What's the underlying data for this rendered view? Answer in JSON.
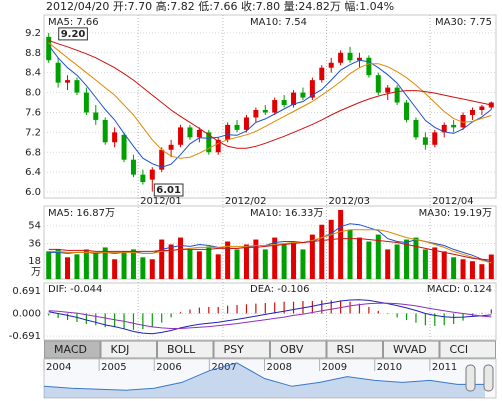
{
  "header": "2012/04/20 开:7.70 高:7.82 低:7.66 收:7.80 量:24.82万 幅:1.04%",
  "tabs": [
    "MACD",
    "KDJ",
    "BOLL",
    "PSY",
    "OBV",
    "RSI",
    "WVAD",
    "CCI"
  ],
  "chart_data": [
    {
      "type": "candlestick",
      "categories": [
        null,
        null,
        null,
        null,
        null,
        null,
        null,
        null,
        null,
        null,
        "2012/01",
        null,
        null,
        null,
        null,
        null,
        null,
        null,
        null,
        "2012/02",
        null,
        null,
        null,
        null,
        null,
        null,
        null,
        null,
        null,
        null,
        "2012/03",
        null,
        null,
        null,
        null,
        null,
        null,
        null,
        null,
        null,
        null,
        "2012/04",
        null,
        null,
        null,
        null,
        null,
        null
      ],
      "open": [
        9.12,
        8.6,
        8.2,
        8.25,
        8.0,
        7.6,
        7.45,
        7.0,
        7.15,
        6.65,
        6.35,
        6.25,
        6.45,
        6.85,
        6.95,
        7.3,
        7.1,
        7.2,
        6.8,
        7.05,
        7.35,
        7.25,
        7.5,
        7.65,
        7.6,
        7.85,
        7.75,
        8.0,
        7.9,
        8.25,
        8.5,
        8.6,
        8.8,
        8.65,
        8.7,
        8.35,
        8.0,
        8.1,
        7.8,
        7.45,
        7.1,
        6.95,
        7.2,
        7.35,
        7.3,
        7.55,
        7.65,
        7.7
      ],
      "high": [
        9.2,
        8.7,
        8.35,
        8.3,
        8.1,
        7.75,
        7.5,
        7.3,
        7.2,
        6.75,
        6.45,
        6.5,
        6.9,
        7.05,
        7.35,
        7.35,
        7.3,
        7.25,
        7.1,
        7.4,
        7.45,
        7.55,
        7.7,
        7.75,
        7.9,
        7.95,
        8.05,
        8.1,
        8.3,
        8.55,
        8.7,
        8.85,
        8.92,
        8.8,
        8.75,
        8.4,
        8.15,
        8.15,
        7.85,
        7.5,
        7.2,
        7.25,
        7.4,
        7.45,
        7.6,
        7.7,
        7.75,
        7.82
      ],
      "low": [
        8.6,
        8.1,
        8.05,
        7.95,
        7.55,
        7.35,
        6.95,
        6.9,
        6.6,
        6.3,
        6.15,
        6.01,
        6.4,
        6.7,
        6.9,
        7.05,
        7.0,
        6.75,
        6.75,
        7.0,
        7.2,
        7.2,
        7.4,
        7.55,
        7.55,
        7.7,
        7.7,
        7.85,
        7.85,
        8.2,
        8.4,
        8.55,
        8.6,
        8.5,
        8.3,
        7.95,
        7.85,
        7.75,
        7.4,
        7.05,
        6.85,
        6.9,
        7.1,
        7.2,
        7.25,
        7.45,
        7.55,
        7.66
      ],
      "close": [
        8.65,
        8.2,
        8.25,
        8.0,
        7.6,
        7.45,
        7.0,
        7.2,
        6.65,
        6.35,
        6.2,
        6.45,
        6.85,
        6.95,
        7.3,
        7.1,
        7.25,
        6.8,
        7.05,
        7.35,
        7.25,
        7.5,
        7.65,
        7.6,
        7.85,
        7.75,
        8.0,
        7.9,
        8.25,
        8.5,
        8.6,
        8.8,
        8.65,
        8.7,
        8.35,
        8.0,
        8.1,
        7.8,
        7.45,
        7.1,
        6.95,
        7.2,
        7.35,
        7.3,
        7.55,
        7.65,
        7.72,
        7.8
      ],
      "series": [
        {
          "name": "MA5: 7.66",
          "color": "#2050d0",
          "values": [
            8.95,
            8.7,
            8.5,
            8.35,
            8.14,
            7.9,
            7.66,
            7.45,
            7.18,
            6.92,
            6.68,
            6.57,
            6.5,
            6.56,
            6.75,
            6.97,
            7.09,
            7.08,
            7.1,
            7.15,
            7.14,
            7.23,
            7.4,
            7.47,
            7.57,
            7.67,
            7.77,
            7.82,
            7.95,
            8.06,
            8.25,
            8.45,
            8.56,
            8.65,
            8.62,
            8.5,
            8.36,
            8.19,
            7.94,
            7.69,
            7.44,
            7.3,
            7.21,
            7.18,
            7.27,
            7.41,
            7.51,
            7.66
          ]
        },
        {
          "name": "MA10: 7.54",
          "color": "#e08a00",
          "values": [
            9.0,
            8.85,
            8.7,
            8.55,
            8.4,
            8.25,
            8.1,
            7.95,
            7.75,
            7.55,
            7.3,
            7.05,
            6.85,
            6.72,
            6.68,
            6.7,
            6.78,
            6.88,
            6.98,
            7.05,
            7.1,
            7.15,
            7.22,
            7.32,
            7.42,
            7.52,
            7.62,
            7.72,
            7.82,
            7.95,
            8.08,
            8.22,
            8.38,
            8.5,
            8.58,
            8.58,
            8.52,
            8.42,
            8.3,
            8.15,
            7.98,
            7.8,
            7.62,
            7.48,
            7.4,
            7.42,
            7.48,
            7.54
          ]
        },
        {
          "name": "MA30: 7.75",
          "color": "#d01010",
          "values": [
            9.05,
            8.98,
            8.92,
            8.85,
            8.78,
            8.7,
            8.6,
            8.5,
            8.38,
            8.25,
            8.1,
            7.95,
            7.8,
            7.65,
            7.52,
            7.4,
            7.28,
            7.15,
            7.02,
            6.92,
            6.88,
            6.88,
            6.92,
            6.98,
            7.05,
            7.12,
            7.2,
            7.28,
            7.36,
            7.45,
            7.55,
            7.64,
            7.72,
            7.8,
            7.87,
            7.93,
            7.98,
            8.02,
            8.04,
            8.04,
            8.02,
            7.99,
            7.95,
            7.91,
            7.87,
            7.83,
            7.79,
            7.75
          ]
        }
      ],
      "annotations": [
        "9.20",
        "6.01"
      ],
      "up_color": "#e00000",
      "down_color": "#00a000",
      "ylim": [
        5.88,
        9.56
      ],
      "yticks": [
        {
          "value": 6,
          "label": "6.0"
        },
        6.4,
        6.8,
        7.2,
        7.6,
        {
          "value": 8,
          "label": "8.0"
        },
        8.4,
        8.8,
        9.2
      ],
      "grid": true
    },
    {
      "type": "bar",
      "values": [
        28,
        30,
        22,
        25,
        30,
        26,
        32,
        20,
        28,
        30,
        22,
        20,
        40,
        35,
        42,
        30,
        28,
        33,
        25,
        38,
        30,
        35,
        40,
        30,
        42,
        35,
        38,
        30,
        45,
        55,
        60,
        70,
        50,
        42,
        38,
        45,
        30,
        35,
        40,
        42,
        30,
        32,
        28,
        22,
        20,
        18,
        15,
        24.82
      ],
      "series": [
        {
          "name": "MA5: 16.87万",
          "color": "#2050d0",
          "values": [
            27,
            27,
            26,
            27,
            27,
            26,
            27,
            26,
            27,
            28,
            26,
            26,
            30,
            32,
            34,
            33,
            35,
            34,
            32,
            31,
            31,
            32,
            34,
            34,
            37,
            38,
            38,
            37,
            38,
            42,
            46,
            53,
            56,
            55,
            52,
            49,
            41,
            38,
            37,
            40,
            38,
            36,
            34,
            30,
            27,
            24,
            20,
            16.87
          ]
        },
        {
          "name": "MA10: 16.33万",
          "color": "#e08a00",
          "values": [
            28,
            28,
            27,
            27,
            27,
            27,
            27,
            27,
            27,
            27,
            26,
            26,
            28,
            29,
            30,
            31,
            32,
            32,
            32,
            33,
            33,
            33,
            34,
            34,
            35,
            36,
            37,
            37,
            39,
            42,
            45,
            48,
            50,
            50,
            50,
            50,
            48,
            45,
            42,
            40,
            38,
            35,
            32,
            28,
            25,
            22,
            19,
            16.33
          ]
        },
        {
          "name": "MA30: 19.19万",
          "color": "#d01010",
          "values": [
            30,
            30,
            29,
            29,
            29,
            28,
            28,
            28,
            28,
            28,
            28,
            28,
            29,
            29,
            30,
            30,
            30,
            30,
            31,
            31,
            31,
            32,
            32,
            33,
            34,
            35,
            36,
            37,
            38,
            39,
            40,
            41,
            41,
            41,
            40,
            39,
            38,
            37,
            35,
            33,
            31,
            29,
            27,
            25,
            23,
            21,
            20,
            19.19
          ]
        }
      ],
      "ylim": [
        0,
        74
      ],
      "yticks": [
        18,
        36,
        54
      ],
      "y_unit": "万",
      "grid": true
    },
    {
      "type": "macd",
      "bars": {
        "name": "MACD: 0.124",
        "values": [
          -0.06,
          -0.14,
          -0.2,
          -0.26,
          -0.32,
          -0.36,
          -0.42,
          -0.42,
          -0.46,
          -0.5,
          -0.48,
          -0.42,
          -0.28,
          -0.12,
          0.04,
          0.12,
          0.18,
          0.2,
          0.2,
          0.24,
          0.26,
          0.28,
          0.3,
          0.32,
          0.34,
          0.36,
          0.36,
          0.38,
          0.38,
          0.4,
          0.4,
          0.4,
          0.36,
          0.3,
          0.2,
          0.08,
          -0.02,
          -0.12,
          -0.2,
          -0.28,
          -0.36,
          -0.38,
          -0.36,
          -0.32,
          -0.22,
          -0.1,
          0.02,
          0.124
        ]
      },
      "series": [
        {
          "name": "DIF: -0.044",
          "color": "#2020c0",
          "values": [
            0.05,
            0.0,
            -0.06,
            -0.12,
            -0.2,
            -0.27,
            -0.35,
            -0.4,
            -0.47,
            -0.55,
            -0.6,
            -0.62,
            -0.58,
            -0.52,
            -0.44,
            -0.38,
            -0.33,
            -0.3,
            -0.27,
            -0.22,
            -0.18,
            -0.13,
            -0.08,
            -0.03,
            0.02,
            0.07,
            0.12,
            0.17,
            0.22,
            0.28,
            0.33,
            0.38,
            0.41,
            0.42,
            0.4,
            0.35,
            0.3,
            0.24,
            0.17,
            0.09,
            0.0,
            -0.06,
            -0.1,
            -0.12,
            -0.11,
            -0.09,
            -0.07,
            -0.044
          ]
        },
        {
          "name": "DEA: -0.106",
          "color": "#9030c0",
          "values": [
            0.08,
            0.07,
            0.04,
            0.01,
            -0.04,
            -0.09,
            -0.14,
            -0.19,
            -0.24,
            -0.3,
            -0.36,
            -0.41,
            -0.44,
            -0.46,
            -0.46,
            -0.44,
            -0.42,
            -0.4,
            -0.37,
            -0.34,
            -0.31,
            -0.27,
            -0.23,
            -0.19,
            -0.15,
            -0.11,
            -0.06,
            -0.02,
            0.03,
            0.08,
            0.13,
            0.18,
            0.23,
            0.27,
            0.3,
            0.31,
            0.31,
            0.3,
            0.27,
            0.23,
            0.18,
            0.13,
            0.08,
            0.04,
            0.0,
            -0.04,
            -0.08,
            -0.106
          ]
        }
      ],
      "up_color": "#d01010",
      "down_color": "#00a000",
      "ylim": [
        -0.811,
        0.931
      ],
      "yticks": [
        0.691,
        {
          "value": 0,
          "label": "0.000"
        },
        -0.691
      ],
      "grid": true
    },
    {
      "type": "area",
      "x": [
        2004,
        2004.5,
        2005,
        2005.5,
        2006,
        2006.5,
        2007,
        2007.5,
        2008,
        2008.5,
        2009,
        2009.5,
        2010,
        2010.5,
        2011,
        2011.5,
        2012
      ],
      "values": [
        6,
        5,
        4.5,
        4,
        5,
        8,
        14,
        18,
        10,
        6,
        8,
        11,
        9,
        8,
        9,
        7,
        7
      ],
      "color": "#3a78c8",
      "xlim": [
        2004,
        2012.2
      ],
      "xticks": [
        2004,
        2005,
        2006,
        2007,
        2008,
        2009,
        2010,
        2011
      ],
      "ylim": [
        0,
        20
      ]
    }
  ]
}
